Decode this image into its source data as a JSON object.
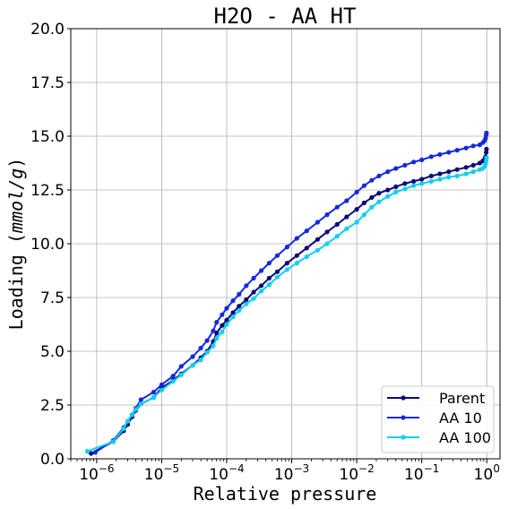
{
  "chart_data": {
    "type": "line",
    "title": "H2O - AA HT",
    "xlabel": "Relative pressure",
    "ylabel_text": "Loading (",
    "ylabel_unit": "mmol/g",
    "ylabel_close": ")",
    "xscale": "log",
    "xlim": [
      4e-07,
      1.6
    ],
    "ylim": [
      0,
      20
    ],
    "yticks": [
      "0.0",
      "2.5",
      "5.0",
      "7.5",
      "10.0",
      "12.5",
      "15.0",
      "17.5",
      "20.0"
    ],
    "xticks": [
      {
        "value": 1e-06,
        "base": "10",
        "exp": "−6"
      },
      {
        "value": 1e-05,
        "base": "10",
        "exp": "−5"
      },
      {
        "value": 0.0001,
        "base": "10",
        "exp": "−4"
      },
      {
        "value": 0.001,
        "base": "10",
        "exp": "−3"
      },
      {
        "value": 0.01,
        "base": "10",
        "exp": "−2"
      },
      {
        "value": 0.1,
        "base": "10",
        "exp": "−1"
      },
      {
        "value": 1,
        "base": "10",
        "exp": "0"
      }
    ],
    "grid": true,
    "legend_position": "lower-right",
    "series": [
      {
        "name": "Parent",
        "color": "#0b0a78",
        "points": [
          [
            8.2e-07,
            0.25
          ],
          [
            1.8e-06,
            0.8
          ],
          [
            2.6e-06,
            1.3
          ],
          [
            3e-06,
            1.6
          ],
          [
            3.5e-06,
            1.95
          ],
          [
            4e-06,
            2.25
          ],
          [
            4.8e-06,
            2.55
          ],
          [
            7.5e-06,
            2.85
          ],
          [
            1e-05,
            3.3
          ],
          [
            1.5e-05,
            3.65
          ],
          [
            2e-05,
            3.95
          ],
          [
            3e-05,
            4.35
          ],
          [
            4e-05,
            4.7
          ],
          [
            5e-05,
            5.0
          ],
          [
            6.2e-05,
            5.45
          ],
          [
            7e-05,
            5.85
          ],
          [
            8.5e-05,
            6.2
          ],
          [
            0.0001,
            6.45
          ],
          [
            0.000125,
            6.8
          ],
          [
            0.000155,
            7.1
          ],
          [
            0.0002,
            7.4
          ],
          [
            0.00026,
            7.75
          ],
          [
            0.00034,
            8.05
          ],
          [
            0.00045,
            8.4
          ],
          [
            0.0006,
            8.7
          ],
          [
            0.00085,
            9.1
          ],
          [
            0.0012,
            9.45
          ],
          [
            0.0017,
            9.8
          ],
          [
            0.0025,
            10.2
          ],
          [
            0.0035,
            10.55
          ],
          [
            0.005,
            10.9
          ],
          [
            0.007,
            11.25
          ],
          [
            0.01,
            11.6
          ],
          [
            0.013,
            11.9
          ],
          [
            0.017,
            12.15
          ],
          [
            0.022,
            12.35
          ],
          [
            0.03,
            12.5
          ],
          [
            0.04,
            12.65
          ],
          [
            0.055,
            12.8
          ],
          [
            0.075,
            12.9
          ],
          [
            0.1,
            13.0
          ],
          [
            0.14,
            13.15
          ],
          [
            0.19,
            13.25
          ],
          [
            0.26,
            13.35
          ],
          [
            0.35,
            13.45
          ],
          [
            0.48,
            13.55
          ],
          [
            0.62,
            13.65
          ],
          [
            0.78,
            13.75
          ],
          [
            0.87,
            13.85
          ],
          [
            0.93,
            13.95
          ],
          [
            0.96,
            14.05
          ],
          [
            0.98,
            14.25
          ],
          [
            0.99,
            14.4
          ]
        ]
      },
      {
        "name": "AA 10",
        "color": "#1428e0",
        "points": [
          [
            9.5e-07,
            0.3
          ],
          [
            1.8e-06,
            0.85
          ],
          [
            2.6e-06,
            1.45
          ],
          [
            3e-06,
            1.75
          ],
          [
            3.5e-06,
            2.05
          ],
          [
            4e-06,
            2.35
          ],
          [
            4.8e-06,
            2.75
          ],
          [
            7.5e-06,
            3.1
          ],
          [
            1e-05,
            3.45
          ],
          [
            1.5e-05,
            3.85
          ],
          [
            2e-05,
            4.3
          ],
          [
            3e-05,
            4.75
          ],
          [
            4e-05,
            5.15
          ],
          [
            5e-05,
            5.5
          ],
          [
            6.2e-05,
            5.95
          ],
          [
            7e-05,
            6.35
          ],
          [
            8.5e-05,
            6.7
          ],
          [
            0.0001,
            7.0
          ],
          [
            0.000125,
            7.35
          ],
          [
            0.000155,
            7.65
          ],
          [
            0.0002,
            8.05
          ],
          [
            0.00026,
            8.4
          ],
          [
            0.00034,
            8.75
          ],
          [
            0.00045,
            9.1
          ],
          [
            0.0006,
            9.45
          ],
          [
            0.00085,
            9.85
          ],
          [
            0.0012,
            10.25
          ],
          [
            0.0017,
            10.6
          ],
          [
            0.0025,
            11.0
          ],
          [
            0.0035,
            11.35
          ],
          [
            0.005,
            11.7
          ],
          [
            0.007,
            12.0
          ],
          [
            0.01,
            12.4
          ],
          [
            0.013,
            12.7
          ],
          [
            0.017,
            12.95
          ],
          [
            0.022,
            13.15
          ],
          [
            0.03,
            13.35
          ],
          [
            0.04,
            13.5
          ],
          [
            0.055,
            13.65
          ],
          [
            0.075,
            13.8
          ],
          [
            0.1,
            13.9
          ],
          [
            0.14,
            14.05
          ],
          [
            0.19,
            14.15
          ],
          [
            0.26,
            14.25
          ],
          [
            0.35,
            14.35
          ],
          [
            0.48,
            14.45
          ],
          [
            0.62,
            14.55
          ],
          [
            0.78,
            14.6
          ],
          [
            0.87,
            14.7
          ],
          [
            0.93,
            14.8
          ],
          [
            0.96,
            14.9
          ],
          [
            0.98,
            15.05
          ],
          [
            0.99,
            15.15
          ]
        ]
      },
      {
        "name": "AA 100",
        "color": "#10cfee",
        "points": [
          [
            7.2e-07,
            0.35
          ],
          [
            1.8e-06,
            0.8
          ],
          [
            2.6e-06,
            1.4
          ],
          [
            3e-06,
            1.75
          ],
          [
            3.5e-06,
            2.05
          ],
          [
            4e-06,
            2.3
          ],
          [
            4.8e-06,
            2.55
          ],
          [
            7.5e-06,
            2.85
          ],
          [
            1e-05,
            3.2
          ],
          [
            1.5e-05,
            3.6
          ],
          [
            2e-05,
            3.9
          ],
          [
            3e-05,
            4.35
          ],
          [
            4e-05,
            4.6
          ],
          [
            5e-05,
            4.95
          ],
          [
            6.2e-05,
            5.25
          ],
          [
            7e-05,
            5.6
          ],
          [
            8.5e-05,
            5.9
          ],
          [
            0.0001,
            6.25
          ],
          [
            0.000125,
            6.6
          ],
          [
            0.000155,
            6.9
          ],
          [
            0.0002,
            7.2
          ],
          [
            0.00026,
            7.45
          ],
          [
            0.00034,
            7.8
          ],
          [
            0.00045,
            8.1
          ],
          [
            0.0006,
            8.45
          ],
          [
            0.00085,
            8.8
          ],
          [
            0.0012,
            9.1
          ],
          [
            0.0017,
            9.4
          ],
          [
            0.0025,
            9.7
          ],
          [
            0.0035,
            10.0
          ],
          [
            0.005,
            10.35
          ],
          [
            0.007,
            10.7
          ],
          [
            0.01,
            11.0
          ],
          [
            0.013,
            11.35
          ],
          [
            0.017,
            11.7
          ],
          [
            0.022,
            11.95
          ],
          [
            0.03,
            12.2
          ],
          [
            0.04,
            12.4
          ],
          [
            0.055,
            12.55
          ],
          [
            0.075,
            12.7
          ],
          [
            0.1,
            12.8
          ],
          [
            0.14,
            12.9
          ],
          [
            0.19,
            13.0
          ],
          [
            0.26,
            13.1
          ],
          [
            0.35,
            13.15
          ],
          [
            0.48,
            13.25
          ],
          [
            0.62,
            13.35
          ],
          [
            0.78,
            13.45
          ],
          [
            0.87,
            13.5
          ],
          [
            0.93,
            13.6
          ],
          [
            0.96,
            13.7
          ],
          [
            0.98,
            13.85
          ],
          [
            0.99,
            14.0
          ]
        ]
      }
    ]
  }
}
